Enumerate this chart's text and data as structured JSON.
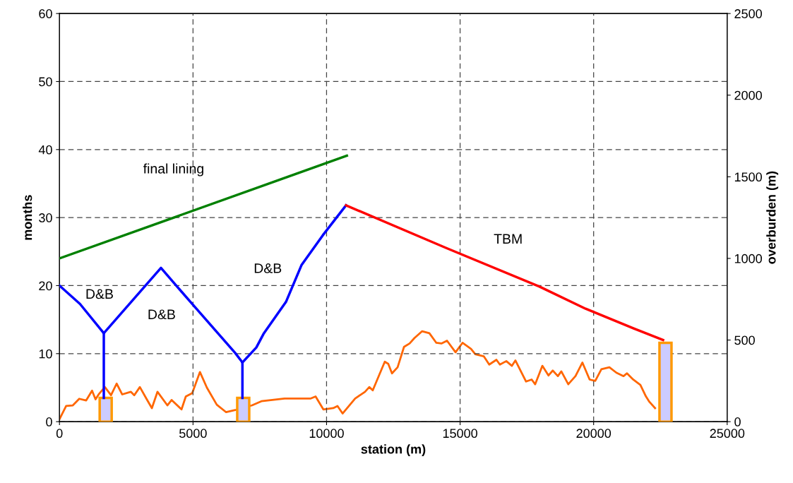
{
  "chart_data": {
    "type": "line",
    "xlabel": "station (m)",
    "ylabel": "months",
    "y2label": "overburden (m)",
    "xlim": [
      0,
      25000
    ],
    "xticks": [
      0,
      5000,
      10000,
      15000,
      20000,
      25000
    ],
    "ylim": [
      0,
      60
    ],
    "yticks": [
      0,
      10,
      20,
      30,
      40,
      50,
      60
    ],
    "y2lim": [
      0,
      2500
    ],
    "y2ticks": [
      0,
      500,
      1000,
      1500,
      2000,
      2500
    ],
    "grid": true,
    "legend": false,
    "series": [
      {
        "type": "bar",
        "color": "#ccccff",
        "x": [
          1730,
          6880,
          22690
        ],
        "values": [
          3.5,
          3.5,
          11.6
        ]
      },
      {
        "axis": "y2",
        "color": "#ff6600",
        "x": [
          0,
          250,
          500,
          740,
          1000,
          1220,
          1350,
          1480,
          1700,
          1930,
          2140,
          2350,
          2670,
          2800,
          3010,
          3250,
          3460,
          3670,
          4040,
          4200,
          4570,
          4730,
          4970,
          5260,
          5520,
          5890,
          6240,
          6580,
          7210,
          7560,
          8430,
          9410,
          9590,
          9880,
          10250,
          10410,
          10600,
          11070,
          11440,
          11600,
          11730,
          12180,
          12310,
          12450,
          12660,
          12900,
          13110,
          13290,
          13580,
          13850,
          14110,
          14300,
          14510,
          14830,
          15090,
          15410,
          15570,
          15890,
          16090,
          16360,
          16490,
          16730,
          16940,
          17070,
          17470,
          17680,
          17810,
          18080,
          18310,
          18470,
          18660,
          18790,
          19050,
          19320,
          19580,
          19850,
          20060,
          20290,
          20590,
          20850,
          21120,
          21250,
          21480,
          21750,
          21960,
          22090,
          22300
        ],
        "values": [
          15,
          96,
          100,
          140,
          130,
          190,
          137,
          170,
          212,
          162,
          233,
          167,
          183,
          162,
          212,
          142,
          83,
          183,
          100,
          133,
          75,
          154,
          175,
          304,
          208,
          104,
          58,
          71,
          100,
          125,
          142,
          142,
          154,
          75,
          83,
          96,
          50,
          142,
          183,
          212,
          192,
          367,
          354,
          296,
          333,
          458,
          479,
          512,
          554,
          542,
          483,
          479,
          496,
          425,
          483,
          446,
          413,
          400,
          350,
          379,
          350,
          371,
          342,
          375,
          246,
          258,
          229,
          342,
          283,
          313,
          279,
          308,
          229,
          279,
          362,
          258,
          250,
          321,
          333,
          300,
          279,
          296,
          258,
          225,
          154,
          121,
          83
        ]
      },
      {
        "name": "D&B",
        "color": "#0000ff",
        "x": [
          0,
          770,
          1660,
          1660
        ],
        "values": [
          20.0,
          17.3,
          13.0,
          3.5
        ]
      },
      {
        "name": "D&B",
        "color": "#0000ff",
        "x": [
          1660,
          3800,
          4970,
          6580,
          6850,
          6850
        ],
        "values": [
          13.0,
          22.6,
          17.3,
          10.1,
          8.7,
          3.5
        ]
      },
      {
        "name": "D&B",
        "color": "#0000ff",
        "x": [
          6850,
          7370,
          7640,
          8480,
          9060,
          9860,
          10730
        ],
        "values": [
          8.7,
          10.9,
          12.9,
          17.6,
          23.0,
          27.4,
          31.8
        ]
      },
      {
        "name": "TBM",
        "color": "#ff0000",
        "x": [
          10730,
          14500,
          18000,
          19700,
          21500,
          22600
        ],
        "values": [
          31.8,
          25.5,
          19.8,
          16.6,
          13.7,
          12.0
        ]
      },
      {
        "name": "final lining",
        "color": "#008000",
        "x": [
          0,
          10760
        ],
        "values": [
          24.0,
          39.1
        ]
      }
    ]
  }
}
